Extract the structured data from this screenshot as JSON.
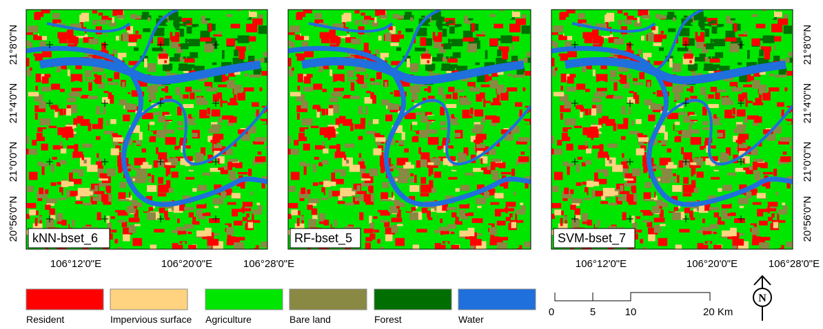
{
  "panels": [
    {
      "label": "kNN-bset_6"
    },
    {
      "label": "RF-bset_5"
    },
    {
      "label": "SVM-bset_7"
    }
  ],
  "latitude_labels": [
    "21°8'0\"N",
    "21°4'0\"N",
    "21°0'0\"N",
    "20°56'0\"N"
  ],
  "longitude_labels": [
    "106°12'0\"E",
    "106°20'0\"E",
    "106°28'0\"E"
  ],
  "legend": [
    {
      "label": "Resident",
      "color": "#ff0000"
    },
    {
      "label": "Impervious surface",
      "color": "#ffd37f"
    },
    {
      "label": "Agriculture",
      "color": "#00e600"
    },
    {
      "label": "Bare land",
      "color": "#898944"
    },
    {
      "label": "Forest",
      "color": "#006e00"
    },
    {
      "label": "Water",
      "color": "#1f6fdc"
    }
  ],
  "scale_bar": {
    "labels": [
      "0",
      "5",
      "10",
      "20 Km"
    ]
  },
  "north_arrow": {
    "label": "N"
  }
}
